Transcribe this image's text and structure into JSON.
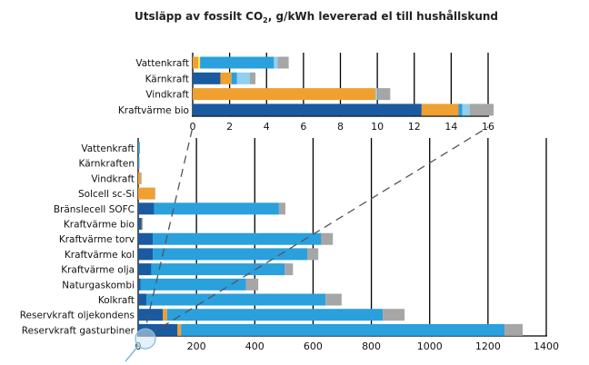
{
  "title": {
    "pre": "Utsläpp av fossilt CO",
    "sub": "2",
    "post": ", g/kWh levererad el till hushållskund"
  },
  "segment_colors": {
    "fuel_dark": "#1a5aa0",
    "orange": "#f0a030",
    "yellow": "#f5e84a",
    "operation": "#2aa0dc",
    "light_blue": "#8fd0ee",
    "grid": "#a6a6a6"
  },
  "chart_data": [
    {
      "type": "bar",
      "orientation": "horizontal",
      "stacked": true,
      "categories": [
        "Vattenkraft",
        "Kärnkraft",
        "Vindkraft",
        "Kraftvärme bio"
      ],
      "segment_order": [
        "fuel_dark",
        "orange",
        "yellow",
        "operation",
        "light_blue",
        "grid"
      ],
      "values": [
        {
          "orange": 0.3,
          "yellow": 0.1,
          "operation": 4.0,
          "light_blue": 0.2,
          "grid": 0.6
        },
        {
          "fuel_dark": 1.5,
          "orange": 0.6,
          "operation": 0.3,
          "light_blue": 0.7,
          "grid": 0.3
        },
        {
          "orange": 9.9,
          "light_blue": 0.1,
          "grid": 0.7
        },
        {
          "fuel_dark": 12.4,
          "orange": 2.0,
          "light_blue": 0.4,
          "operation": 0.2,
          "grid": 1.3
        }
      ],
      "xlim": [
        0,
        16
      ],
      "xticks": [
        0,
        2,
        4,
        6,
        8,
        10,
        12,
        14,
        16
      ],
      "grid": true
    },
    {
      "type": "bar",
      "orientation": "horizontal",
      "stacked": true,
      "categories": [
        "Vattenkraft",
        "Kärnkraften",
        "Vindkraft",
        "Solcell sc-Si",
        "Bränslecell SOFC",
        "Kraftvärme bio",
        "Kraftvärme torv",
        "Kraftvärme kol",
        "Kraftvärme olja",
        "Naturgaskombi",
        "Kolkraft",
        "Reservkraft oljekondens",
        "Reservkraft gasturbiner"
      ],
      "segment_order": [
        "fuel_dark",
        "orange",
        "yellow",
        "operation",
        "light_blue",
        "grid"
      ],
      "values": [
        {
          "operation": 4.6,
          "grid": 0.6
        },
        {
          "operation": 3.0,
          "grid": 0.3
        },
        {
          "orange": 10.0,
          "grid": 0.7
        },
        {
          "orange": 57,
          "grid": 2
        },
        {
          "fuel_dark": 55,
          "operation": 428,
          "grid": 22
        },
        {
          "fuel_dark": 12,
          "orange": 2,
          "grid": 2
        },
        {
          "fuel_dark": 50,
          "operation": 578,
          "grid": 40
        },
        {
          "fuel_dark": 50,
          "operation": 530,
          "grid": 38
        },
        {
          "fuel_dark": 45,
          "operation": 458,
          "grid": 28
        },
        {
          "fuel_dark": 8,
          "operation": 362,
          "grid": 42
        },
        {
          "fuel_dark": 28,
          "operation": 615,
          "grid": 55
        },
        {
          "fuel_dark": 85,
          "orange": 14,
          "operation": 740,
          "grid": 75
        },
        {
          "fuel_dark": 135,
          "orange": 12,
          "operation": 1110,
          "grid": 62
        }
      ],
      "xlim": [
        0,
        1400
      ],
      "xticks": [
        0,
        200,
        400,
        600,
        800,
        1000,
        1200,
        1400
      ],
      "grid": true
    }
  ]
}
